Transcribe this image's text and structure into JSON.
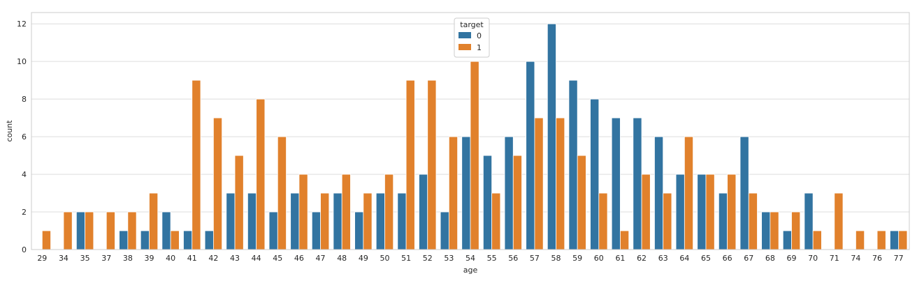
{
  "chart_data": {
    "type": "bar",
    "title": "",
    "xlabel": "age",
    "ylabel": "count",
    "ylim": [
      0,
      12.6
    ],
    "yticks": [
      0,
      2,
      4,
      6,
      8,
      10,
      12
    ],
    "grid": "horizontal",
    "legend": {
      "title": "target",
      "placement": "upper-center"
    },
    "categories": [
      "29",
      "34",
      "35",
      "37",
      "38",
      "39",
      "40",
      "41",
      "42",
      "43",
      "44",
      "45",
      "46",
      "47",
      "48",
      "49",
      "50",
      "51",
      "52",
      "53",
      "54",
      "55",
      "56",
      "57",
      "58",
      "59",
      "60",
      "61",
      "62",
      "63",
      "64",
      "65",
      "66",
      "67",
      "68",
      "69",
      "70",
      "71",
      "74",
      "76",
      "77"
    ],
    "series": [
      {
        "name": "0",
        "color": "#3274a1",
        "values": [
          0,
          0,
          2,
          0,
          1,
          1,
          2,
          1,
          1,
          3,
          3,
          2,
          3,
          2,
          3,
          2,
          3,
          3,
          4,
          2,
          6,
          5,
          6,
          10,
          12,
          9,
          8,
          7,
          7,
          6,
          4,
          4,
          3,
          6,
          2,
          1,
          3,
          0,
          0,
          0,
          1
        ]
      },
      {
        "name": "1",
        "color": "#e1812c",
        "values": [
          1,
          2,
          2,
          2,
          2,
          3,
          1,
          9,
          7,
          5,
          8,
          6,
          4,
          3,
          4,
          3,
          4,
          9,
          9,
          6,
          10,
          3,
          5,
          7,
          7,
          5,
          3,
          1,
          4,
          3,
          6,
          4,
          4,
          3,
          2,
          2,
          1,
          3,
          1,
          1,
          1
        ]
      }
    ]
  }
}
